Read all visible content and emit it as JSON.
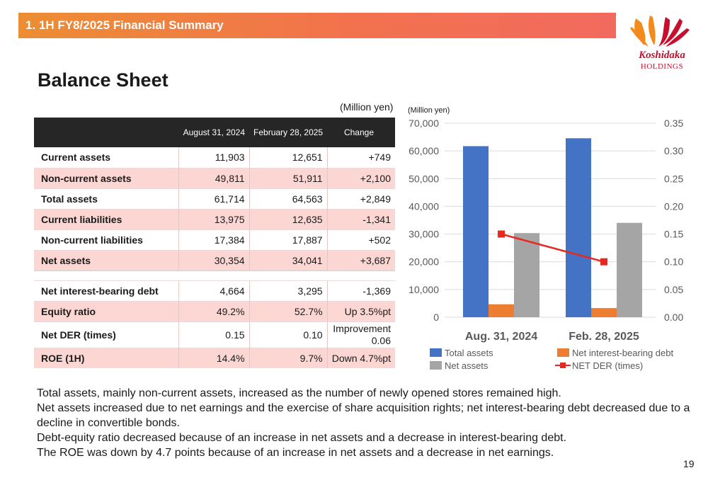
{
  "header": {
    "section_title": "1. 1H FY8/2025 Financial Summary"
  },
  "logo": {
    "name": "Koshidaka",
    "sub": "HOLDINGS",
    "colors": [
      "#f28a1e",
      "#c8102e"
    ]
  },
  "page_title": "Balance Sheet",
  "table": {
    "unit": "(Million yen)",
    "columns": [
      "",
      "August 31, 2024",
      "February 28, 2025",
      "Change"
    ],
    "rows": [
      {
        "label": "Current assets",
        "aug": "11,903",
        "feb": "12,651",
        "change": "+749",
        "shade": "w"
      },
      {
        "label": "Non-current assets",
        "aug": "49,811",
        "feb": "51,911",
        "change": "+2,100",
        "shade": "p"
      },
      {
        "label": "Total assets",
        "aug": "61,714",
        "feb": "64,563",
        "change": "+2,849",
        "shade": "w"
      },
      {
        "label": "Current liabilities",
        "aug": "13,975",
        "feb": "12,635",
        "change": "-1,341",
        "shade": "p"
      },
      {
        "label": "Non-current liabilities",
        "aug": "17,384",
        "feb": "17,887",
        "change": "+502",
        "shade": "w"
      },
      {
        "label": "Net assets",
        "aug": "30,354",
        "feb": "34,041",
        "change": "+3,687",
        "shade": "p"
      }
    ],
    "rows2": [
      {
        "label": "Net interest-bearing debt",
        "aug": "4,664",
        "feb": "3,295",
        "change": "-1,369",
        "shade": "w"
      },
      {
        "label": "Equity ratio",
        "aug": "49.2%",
        "feb": "52.7%",
        "change": "Up 3.5%pt",
        "shade": "p"
      },
      {
        "label": "Net DER (times)",
        "aug": "0.15",
        "feb": "0.10",
        "change": "Improvement 0.06",
        "shade": "w",
        "tall": true
      },
      {
        "label": "ROE (1H)",
        "aug": "14.4%",
        "feb": "9.7%",
        "change": "Down 4.7%pt",
        "shade": "p"
      }
    ]
  },
  "chart_data": {
    "type": "bar",
    "unit_label": "(Million yen)",
    "categories": [
      "Aug. 31, 2024",
      "Feb. 28, 2025"
    ],
    "series": [
      {
        "name": "Total assets",
        "values": [
          61714,
          64563
        ],
        "color": "#4472c4",
        "axis": "left"
      },
      {
        "name": "Net interest-bearing debt",
        "values": [
          4664,
          3295
        ],
        "color": "#ed7d31",
        "axis": "left"
      },
      {
        "name": "Net assets",
        "values": [
          30354,
          34041
        ],
        "color": "#a5a5a5",
        "axis": "left"
      },
      {
        "name": "NET DER (times)",
        "values": [
          0.15,
          0.1
        ],
        "color": "#e8281e",
        "axis": "right",
        "kind": "line"
      }
    ],
    "ylim_left": [
      0,
      70000
    ],
    "yticks_left": [
      "0",
      "10,000",
      "20,000",
      "30,000",
      "40,000",
      "50,000",
      "60,000",
      "70,000"
    ],
    "ylim_right": [
      0,
      0.35
    ],
    "yticks_right": [
      "0.00",
      "0.05",
      "0.10",
      "0.15",
      "0.20",
      "0.25",
      "0.30",
      "0.35"
    ],
    "grid": true,
    "legend": "bottom"
  },
  "notes": [
    "Total assets, mainly non-current assets, increased as the number of newly opened stores remained high.",
    "Net assets increased due to net earnings and the exercise of share acquisition rights; net interest-bearing debt decreased due to a decline in convertible bonds.",
    "Debt-equity ratio decreased because of an increase in net assets and a decrease in interest-bearing debt.",
    "The ROE was down by 4.7 points because of an increase in net assets and a decrease in net earnings."
  ],
  "page_number": "19"
}
